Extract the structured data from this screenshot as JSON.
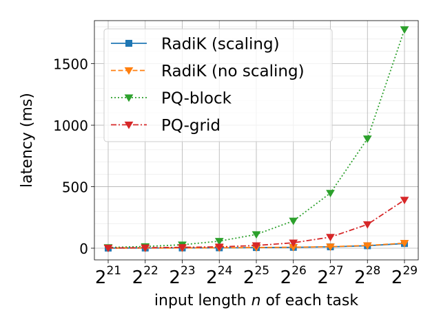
{
  "chart_data": {
    "type": "line",
    "title": "",
    "xlabel": "input length n of each task",
    "ylabel": "latency (ms)",
    "x_scale": "log2",
    "x": [
      2097152,
      4194304,
      8388608,
      16777216,
      33554432,
      67108864,
      134217728,
      268435456,
      536870912
    ],
    "x_tick_labels": [
      {
        "base": "2",
        "exp": "21"
      },
      {
        "base": "2",
        "exp": "22"
      },
      {
        "base": "2",
        "exp": "23"
      },
      {
        "base": "2",
        "exp": "24"
      },
      {
        "base": "2",
        "exp": "25"
      },
      {
        "base": "2",
        "exp": "26"
      },
      {
        "base": "2",
        "exp": "27"
      },
      {
        "base": "2",
        "exp": "28"
      },
      {
        "base": "2",
        "exp": "29"
      }
    ],
    "ylim": [
      -95,
      1850
    ],
    "y_ticks": [
      0,
      500,
      1000,
      1500
    ],
    "y_minor_step": 100,
    "grid": true,
    "legend_position": "top-left",
    "series": [
      {
        "name": "RadiK (scaling)",
        "color": "#1f77b4",
        "linestyle": "solid",
        "marker": "square",
        "values": [
          1,
          1.5,
          2,
          3,
          5,
          7,
          11,
          20,
          38
        ]
      },
      {
        "name": "RadiK (no scaling)",
        "color": "#ff7f0e",
        "linestyle": "dashed",
        "marker": "triangle-down",
        "values": [
          1,
          1.5,
          2,
          3.5,
          5.5,
          8,
          12,
          22,
          41
        ]
      },
      {
        "name": "PQ-block",
        "color": "#2ca02c",
        "linestyle": "dotted",
        "marker": "triangle-down",
        "values": [
          6,
          14,
          28,
          57,
          112,
          222,
          448,
          890,
          1778
        ]
      },
      {
        "name": "PQ-grid",
        "color": "#d62728",
        "linestyle": "dashdot",
        "marker": "triangle-down",
        "values": [
          2,
          4,
          7,
          11,
          22,
          44,
          90,
          193,
          392
        ]
      }
    ]
  }
}
